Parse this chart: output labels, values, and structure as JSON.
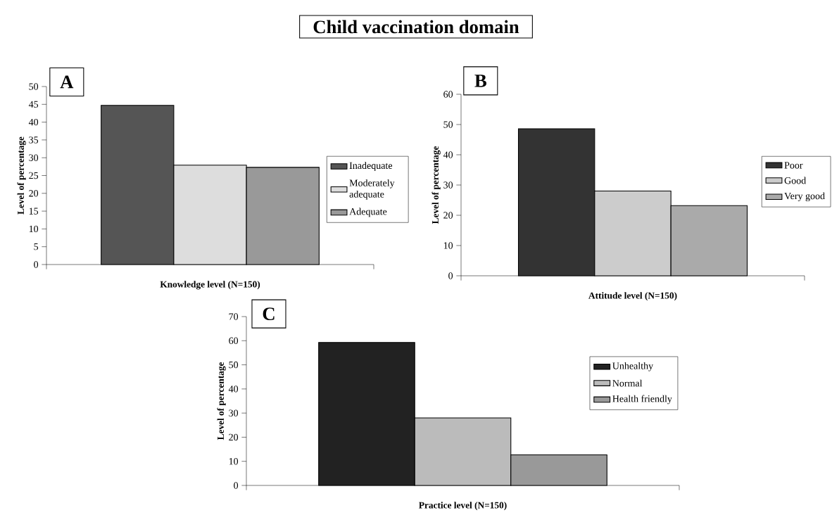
{
  "chart_data": [
    {
      "type": "bar",
      "title": "Child vaccination domain",
      "annotations": [
        "A"
      ],
      "categories": [
        null
      ],
      "xlabel": "Knowledge level (N=150)",
      "ylabel": "Level of percentage",
      "ylim": [
        0,
        50
      ],
      "yticks": [
        0,
        5,
        10,
        15,
        20,
        25,
        30,
        35,
        40,
        45,
        50
      ],
      "legend": "right",
      "grid": false,
      "series": [
        {
          "name": "Inadequate",
          "color": "#555555",
          "values": [
            44.7
          ]
        },
        {
          "name": "Moderately adequate",
          "color": "#dddddd",
          "values": [
            27.9
          ]
        },
        {
          "name": "Adequate",
          "color": "#999999",
          "values": [
            27.3
          ]
        }
      ]
    },
    {
      "type": "bar",
      "annotations": [
        "B"
      ],
      "categories": [
        null
      ],
      "xlabel": "Attitude level (N=150)",
      "ylabel": "Level of percentage",
      "ylim": [
        0,
        60
      ],
      "yticks": [
        0,
        10,
        20,
        30,
        40,
        50,
        60
      ],
      "legend": "right",
      "grid": false,
      "series": [
        {
          "name": "Poor",
          "color": "#333333",
          "values": [
            48.6
          ]
        },
        {
          "name": "Good",
          "color": "#cccccc",
          "values": [
            28.0
          ]
        },
        {
          "name": "Very good",
          "color": "#aaaaaa",
          "values": [
            23.2
          ]
        }
      ]
    },
    {
      "type": "bar",
      "annotations": [
        "C"
      ],
      "categories": [
        null
      ],
      "xlabel": "Practice level (N=150)",
      "ylabel": "Level of percentage",
      "ylim": [
        0,
        70
      ],
      "yticks": [
        0,
        10,
        20,
        30,
        40,
        50,
        60,
        70
      ],
      "legend": "top right",
      "grid": false,
      "series": [
        {
          "name": "Unhealthy",
          "color": "#222222",
          "values": [
            59.3
          ]
        },
        {
          "name": "Normal",
          "color": "#bbbbbb",
          "values": [
            28.0
          ]
        },
        {
          "name": "Health friendly",
          "color": "#999999",
          "values": [
            12.7
          ]
        }
      ]
    }
  ]
}
